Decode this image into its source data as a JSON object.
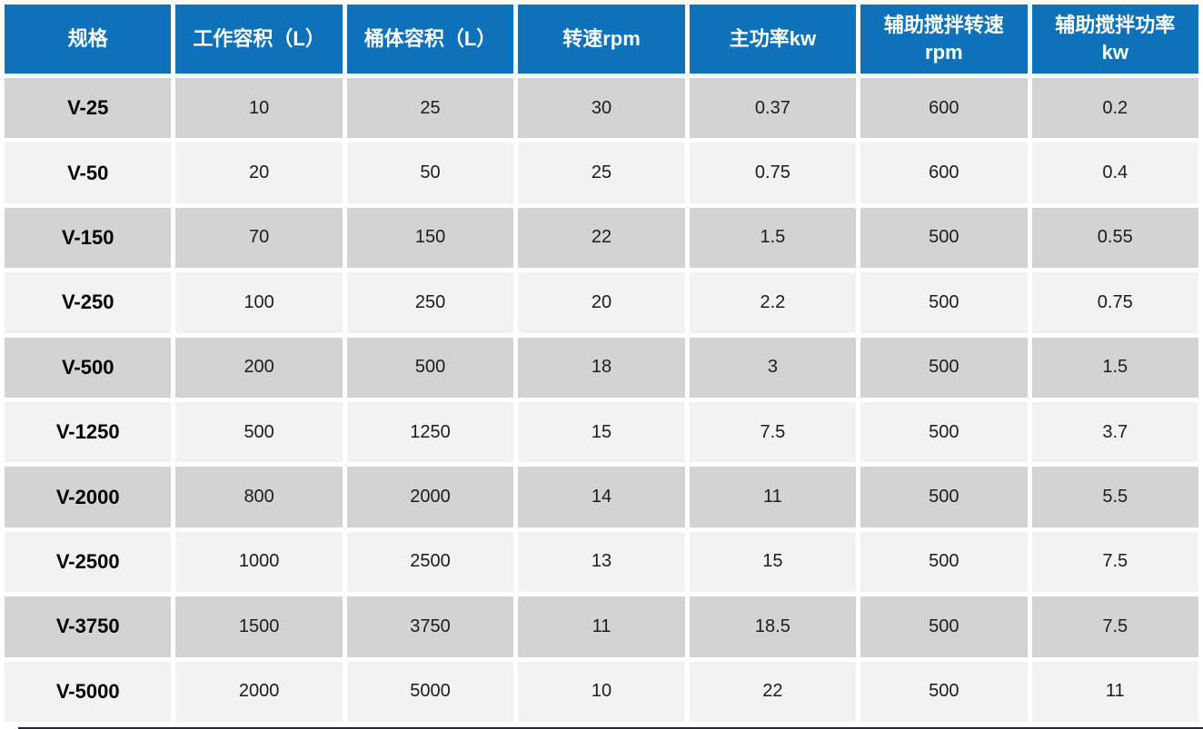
{
  "chart_data": {
    "type": "table",
    "title": "",
    "columns": [
      "规格",
      "工作容积（L）",
      "桶体容积（L）",
      "转速rpm",
      "主功率kw",
      "辅助搅拌转速\nrpm",
      "辅助搅拌功率\nkw"
    ],
    "rows": [
      [
        "V-25",
        "10",
        "25",
        "30",
        "0.37",
        "600",
        "0.2"
      ],
      [
        "V-50",
        "20",
        "50",
        "25",
        "0.75",
        "600",
        "0.4"
      ],
      [
        "V-150",
        "70",
        "150",
        "22",
        "1.5",
        "500",
        "0.55"
      ],
      [
        "V-250",
        "100",
        "250",
        "20",
        "2.2",
        "500",
        "0.75"
      ],
      [
        "V-500",
        "200",
        "500",
        "18",
        "3",
        "500",
        "1.5"
      ],
      [
        "V-1250",
        "500",
        "1250",
        "15",
        "7.5",
        "500",
        "3.7"
      ],
      [
        "V-2000",
        "800",
        "2000",
        "14",
        "11",
        "500",
        "5.5"
      ],
      [
        "V-2500",
        "1000",
        "2500",
        "13",
        "15",
        "500",
        "7.5"
      ],
      [
        "V-3750",
        "1500",
        "3750",
        "11",
        "18.5",
        "500",
        "7.5"
      ],
      [
        "V-5000",
        "2000",
        "5000",
        "10",
        "22",
        "500",
        "11"
      ]
    ],
    "layout": {
      "header_position": "top",
      "zebra_striping": true,
      "first_column_bold": true
    }
  },
  "colors": {
    "header_bg": "#0d72b9",
    "header_text": "#ffffff",
    "row_odd_bg": "#d3d3d3",
    "row_even_bg": "#f2f2f2",
    "cell_text": "#1c1c1c",
    "gap": "#ffffff"
  }
}
